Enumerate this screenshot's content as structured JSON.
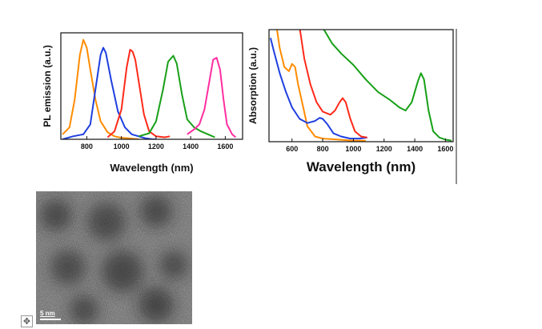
{
  "chart_data": [
    {
      "type": "line",
      "xlabel": "Wavelength (nm)",
      "ylabel": "PL emission (a.u.)",
      "xlim": [
        650,
        1700
      ],
      "ylim": [
        0,
        1.07
      ],
      "xticks": [
        800,
        1000,
        1200,
        1400,
        1600
      ],
      "series": [
        {
          "name": "orange",
          "color": "#ff8c00",
          "x": [
            660,
            700,
            730,
            760,
            780,
            800,
            820,
            850,
            880,
            920,
            960,
            1000,
            1040,
            1100
          ],
          "y": [
            0.05,
            0.12,
            0.4,
            0.85,
            1.0,
            0.92,
            0.7,
            0.4,
            0.18,
            0.07,
            0.03,
            0.015,
            0.01,
            0.0
          ]
        },
        {
          "name": "blue",
          "color": "#1f3fe0",
          "x": [
            660,
            720,
            780,
            820,
            850,
            880,
            895,
            910,
            940,
            980,
            1020,
            1060,
            1100,
            1140,
            1180,
            1200
          ],
          "y": [
            0.0,
            0.03,
            0.05,
            0.15,
            0.5,
            0.85,
            0.92,
            0.87,
            0.6,
            0.28,
            0.12,
            0.05,
            0.03,
            0.01,
            0.0,
            0.0
          ]
        },
        {
          "name": "red",
          "color": "#ff2a1a",
          "x": [
            920,
            960,
            1000,
            1030,
            1050,
            1065,
            1080,
            1100,
            1130,
            1160,
            1200,
            1250,
            1280
          ],
          "y": [
            0.02,
            0.08,
            0.3,
            0.72,
            0.9,
            0.88,
            0.8,
            0.58,
            0.25,
            0.08,
            0.03,
            0.02,
            0.03
          ]
        },
        {
          "name": "green",
          "color": "#17a017",
          "x": [
            1100,
            1160,
            1200,
            1240,
            1270,
            1300,
            1320,
            1350,
            1380,
            1420,
            1460,
            1500,
            1540
          ],
          "y": [
            0.03,
            0.06,
            0.18,
            0.5,
            0.78,
            0.84,
            0.76,
            0.45,
            0.2,
            0.12,
            0.08,
            0.05,
            0.02
          ]
        },
        {
          "name": "magenta",
          "color": "#ff2ea0",
          "x": [
            1380,
            1420,
            1450,
            1480,
            1510,
            1530,
            1550,
            1570,
            1590,
            1610,
            1640,
            1660
          ],
          "y": [
            0.05,
            0.1,
            0.15,
            0.3,
            0.6,
            0.8,
            0.82,
            0.7,
            0.4,
            0.15,
            0.05,
            0.02
          ]
        }
      ]
    },
    {
      "type": "line",
      "xlabel": "Wavelength (nm)",
      "ylabel": "Absorption (a.u.)",
      "xlim": [
        450,
        1650
      ],
      "ylim": [
        0,
        1.08
      ],
      "xticks": [
        600,
        800,
        1000,
        1200,
        1400,
        1600
      ],
      "series": [
        {
          "name": "orange",
          "color": "#ff8c00",
          "x": [
            500,
            520,
            550,
            580,
            600,
            620,
            640,
            670,
            700,
            750,
            800,
            900,
            1000,
            1080
          ],
          "y": [
            1.1,
            0.9,
            0.72,
            0.68,
            0.75,
            0.72,
            0.55,
            0.35,
            0.15,
            0.05,
            0.03,
            0.02,
            0.01,
            0.01
          ]
        },
        {
          "name": "blue",
          "color": "#1f3fe0",
          "x": [
            460,
            480,
            520,
            560,
            600,
            650,
            700,
            750,
            780,
            800,
            830,
            870,
            920,
            980,
            1040,
            1090
          ],
          "y": [
            1.0,
            0.88,
            0.66,
            0.48,
            0.33,
            0.22,
            0.18,
            0.2,
            0.23,
            0.22,
            0.17,
            0.08,
            0.05,
            0.03,
            0.03,
            0.04
          ]
        },
        {
          "name": "red",
          "color": "#ff2a1a",
          "x": [
            650,
            680,
            720,
            760,
            800,
            850,
            880,
            910,
            930,
            950,
            980,
            1010,
            1050,
            1090
          ],
          "y": [
            1.1,
            0.8,
            0.55,
            0.38,
            0.29,
            0.26,
            0.3,
            0.38,
            0.42,
            0.38,
            0.22,
            0.1,
            0.05,
            0.04
          ]
        },
        {
          "name": "green",
          "color": "#17a017",
          "x": [
            800,
            860,
            920,
            1000,
            1080,
            1160,
            1240,
            1300,
            1340,
            1380,
            1420,
            1440,
            1460,
            1490,
            1520,
            1560,
            1600,
            1640
          ],
          "y": [
            1.1,
            0.95,
            0.85,
            0.74,
            0.6,
            0.48,
            0.4,
            0.33,
            0.3,
            0.38,
            0.58,
            0.66,
            0.6,
            0.3,
            0.1,
            0.04,
            0.02,
            0.01
          ]
        }
      ]
    }
  ],
  "micrograph": {
    "scale_bar_label": "5 nm"
  },
  "ui": {
    "move_handle_icon": "move-icon",
    "move_handle_glyph": "✥"
  }
}
